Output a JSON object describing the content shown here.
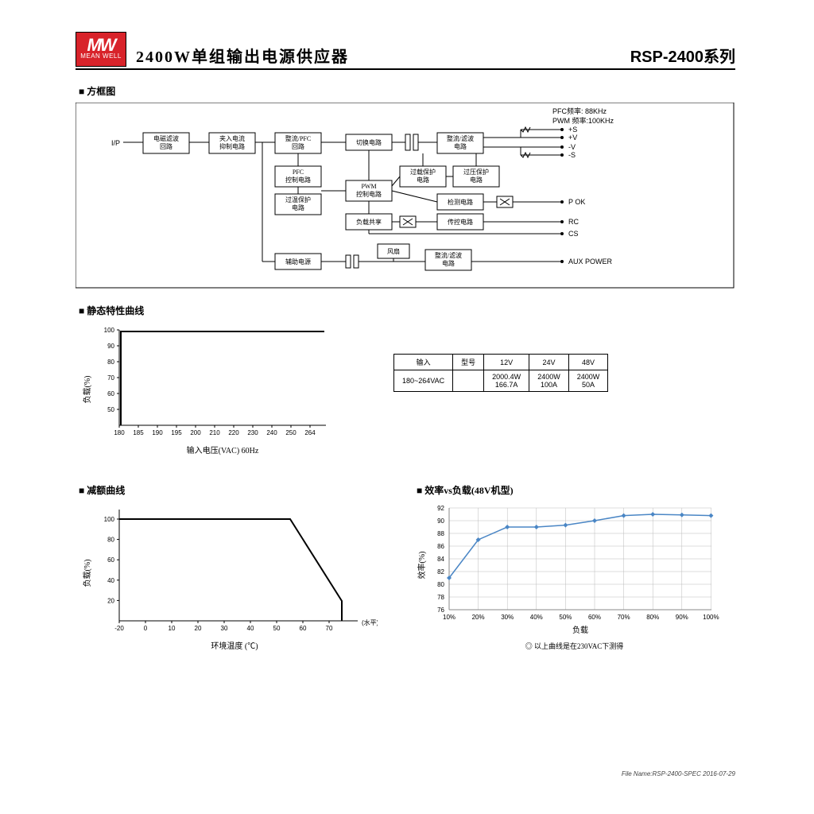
{
  "header": {
    "logo_top": "MW",
    "logo_bottom": "MEAN WELL",
    "title": "2400W单组输出电源供应器",
    "series": "RSP-2400",
    "series_suffix": "系列"
  },
  "block_diagram": {
    "heading": "方框图",
    "pfc_freq": "PFC频率: 88KHz",
    "pwm_freq": "PWM 频率:100KHz",
    "ip": "I/P",
    "blocks": {
      "emi": "电磁滤波\n回路",
      "inrush": "夹入电流\n抑制电路",
      "pfc": "整流/PFC\n回路",
      "sw": "切换电路",
      "rect1": "整流/滤波\n电路",
      "pfcc": "PFC\n控制电路",
      "otp": "过温保护\n电路",
      "pwm": "PWM\n控制电路",
      "olp": "过载保护\n电路",
      "ovp": "过压保护\n电路",
      "det": "检测电路",
      "sig": "传控电路",
      "share": "负载共享",
      "aux": "辅助电源",
      "fan": "风扇",
      "rect2": "整流/滤波\n电路"
    },
    "outputs": {
      "ps": "+S",
      "pv": "+V",
      "nv": "-V",
      "ns": "-S",
      "pok": "P OK",
      "rc": "RC",
      "cs": "CS",
      "auxp": "AUX POWER"
    }
  },
  "static_curve": {
    "heading": "静态特性曲线",
    "ylabel": "负载(%)",
    "xlabel": "输入电压(VAC) 60Hz",
    "yticks": [
      "50",
      "60",
      "70",
      "80",
      "90",
      "100"
    ],
    "xticks": [
      "180",
      "185",
      "190",
      "195",
      "200",
      "210",
      "220",
      "230",
      "240",
      "250",
      "264"
    ]
  },
  "spec_table": {
    "h0": "输入",
    "h1": "型号",
    "c1": "12V",
    "c2": "24V",
    "c3": "48V",
    "r1": "180~264VAC",
    "v1a": "2000.4W",
    "v1b": "166.7A",
    "v2a": "2400W",
    "v2b": "100A",
    "v3a": "2400W",
    "v3b": "50A"
  },
  "derating": {
    "heading": "减额曲线",
    "ylabel": "负载(%)",
    "xlabel": "环境温度 (℃)",
    "xsuffix": "(水平)",
    "yticks": [
      "20",
      "40",
      "60",
      "80",
      "100"
    ],
    "xticks": [
      "-20",
      "0",
      "10",
      "20",
      "30",
      "40",
      "50",
      "60",
      "70"
    ]
  },
  "efficiency": {
    "heading": "效率vs负载(48V机型)",
    "ylabel": "效率(%)",
    "xlabel": "负载",
    "yticks": [
      "76",
      "78",
      "80",
      "82",
      "84",
      "86",
      "88",
      "90",
      "92"
    ],
    "xticks": [
      "10%",
      "20%",
      "30%",
      "40%",
      "50%",
      "60%",
      "70%",
      "80%",
      "90%",
      "100%"
    ],
    "points": [
      [
        10,
        81
      ],
      [
        20,
        87
      ],
      [
        30,
        89
      ],
      [
        40,
        89
      ],
      [
        50,
        89.3
      ],
      [
        60,
        90
      ],
      [
        70,
        90.8
      ],
      [
        80,
        91
      ],
      [
        90,
        90.9
      ],
      [
        100,
        90.8
      ]
    ],
    "line_color": "#4a86c5",
    "note": "◎ 以上曲线是在230VAC下测得"
  },
  "footer": "File Name:RSP-2400-SPEC   2016-07-29"
}
